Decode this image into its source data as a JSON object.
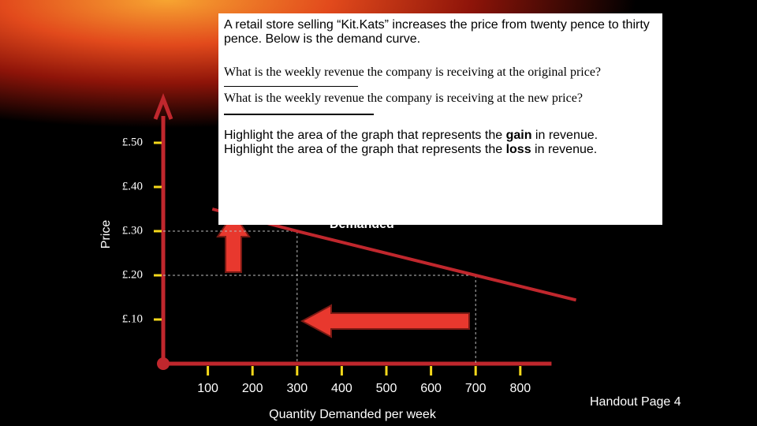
{
  "chart_data": {
    "type": "line",
    "x": [
      110,
      300,
      700,
      925
    ],
    "series": [
      {
        "color": "#c0272d",
        "values": [
          0.35,
          0.3,
          0.2,
          0.144
        ]
      }
    ],
    "xlim": [
      0,
      870
    ],
    "xticks": [
      100,
      200,
      300,
      400,
      500,
      600,
      700,
      800
    ],
    "ylim": [
      0,
      0.6
    ],
    "yticks": [
      {
        "value": 0.1,
        "label": "£.10"
      },
      {
        "value": 0.2,
        "label": "£.20"
      },
      {
        "value": 0.3,
        "label": "£.30"
      },
      {
        "value": 0.4,
        "label": "£.40"
      },
      {
        "value": 0.5,
        "label": "£.50"
      }
    ],
    "xlabel": "Quantity Demanded per week",
    "ylabel": "Price",
    "annotations": [
      "Demanded"
    ]
  },
  "question_box": {
    "intro": "A retail store selling “Kit.Kats” increases the price from twenty pence to thirty pence. Below is the demand curve.",
    "q1": "What is the weekly revenue the company  is receiving at the original price?",
    "q2": "What is the weekly revenue the company  is receiving at the new price?",
    "gain": [
      "Highlight the area of the graph that represents the",
      "gain",
      "in revenue."
    ],
    "loss": [
      "Highlight the area of the graph that represents the",
      "loss",
      "in revenue."
    ]
  },
  "footer": "Handout Page 4"
}
